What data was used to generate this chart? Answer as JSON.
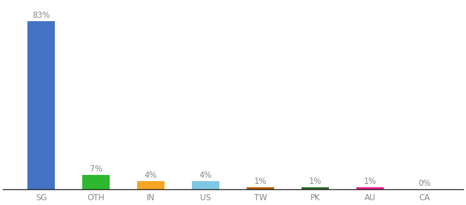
{
  "categories": [
    "SG",
    "OTH",
    "IN",
    "US",
    "TW",
    "PK",
    "AU",
    "CA"
  ],
  "values": [
    83,
    7,
    4,
    4,
    1,
    1,
    1,
    0
  ],
  "labels": [
    "83%",
    "7%",
    "4%",
    "4%",
    "1%",
    "1%",
    "1%",
    "0%"
  ],
  "bar_colors": [
    "#4472c4",
    "#2db82d",
    "#f5a623",
    "#7ec8e3",
    "#b85c00",
    "#2d6a2d",
    "#e91e8c",
    "#cccccc"
  ],
  "background_color": "#ffffff",
  "ylim": [
    0,
    92
  ],
  "label_fontsize": 8.5,
  "tick_fontsize": 8.5,
  "label_color": "#888888",
  "tick_color": "#888888"
}
